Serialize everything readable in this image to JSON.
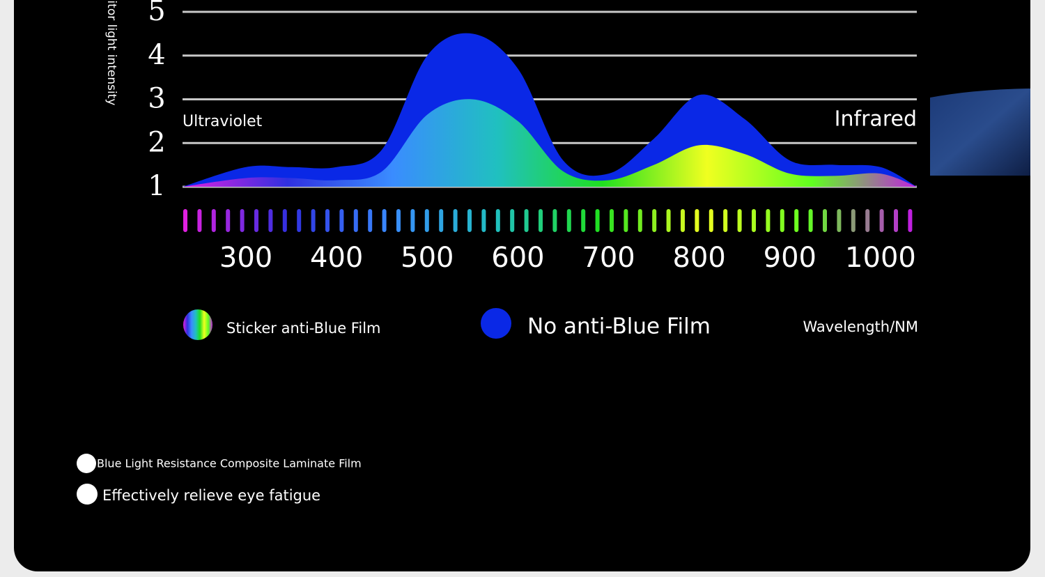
{
  "chart_data": {
    "type": "area",
    "y_label": "Monitor light intensity",
    "x_label": "Wavelength/NM",
    "left_annotation": "Ultraviolet",
    "right_annotation": "Infrared",
    "x": [
      230,
      300,
      350,
      400,
      450,
      500,
      550,
      600,
      650,
      700,
      750,
      800,
      850,
      900,
      950,
      1000,
      1040
    ],
    "series": [
      {
        "name": "Sticker anti-Blue Film",
        "colors": [
          "#e020e0",
          "#3030e0",
          "#3a8cff",
          "#20c0c0",
          "#20e020",
          "#f0ff20",
          "#60ff20",
          "#c020e0"
        ],
        "values": [
          1.0,
          1.2,
          1.2,
          1.15,
          1.35,
          2.65,
          3.0,
          2.5,
          1.35,
          1.15,
          1.5,
          1.95,
          1.75,
          1.3,
          1.25,
          1.3,
          1.0
        ]
      },
      {
        "name": "No anti-Blue Film",
        "color": "#0a28e6",
        "values": [
          1.0,
          1.45,
          1.45,
          1.45,
          1.85,
          4.0,
          4.5,
          3.7,
          1.6,
          1.3,
          2.1,
          3.1,
          2.55,
          1.6,
          1.5,
          1.45,
          1.0
        ]
      }
    ],
    "xlim": [
      230,
      1040
    ],
    "ylim": [
      1,
      5
    ],
    "xticks": [
      300,
      400,
      500,
      600,
      700,
      800,
      900,
      1000
    ],
    "yticks": [
      1,
      2,
      3,
      4,
      5
    ],
    "grid": true
  },
  "features": [
    "Blue Light Resistance Composite Laminate Film",
    "Effectively relieve eye fatigue"
  ]
}
